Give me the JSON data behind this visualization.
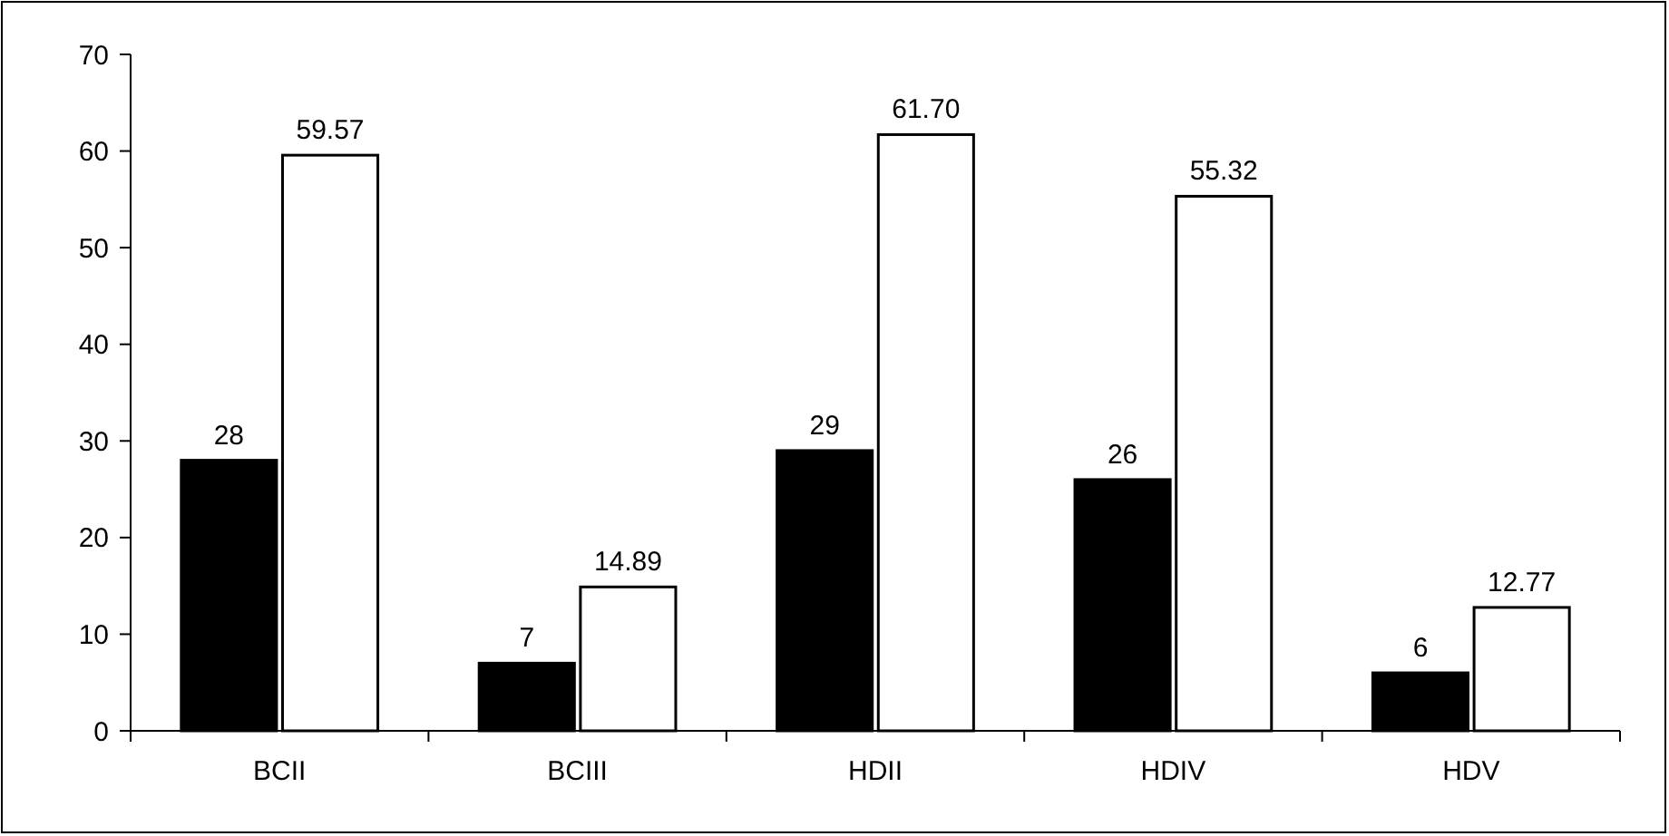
{
  "chart_data": {
    "type": "bar",
    "categories": [
      "BCII",
      "BCIII",
      "HDII",
      "HDIV",
      "HDV"
    ],
    "series": [
      {
        "color": "#000000",
        "values": [
          28,
          7,
          29,
          26,
          6
        ],
        "value_labels": [
          "28",
          "7",
          "29",
          "26",
          "6"
        ]
      },
      {
        "color": "#ffffff",
        "values": [
          59.57,
          14.89,
          61.7,
          55.32,
          12.77
        ],
        "value_labels": [
          "59.57",
          "14.89",
          "61.70",
          "55.32",
          "12.77"
        ]
      }
    ],
    "ylim": [
      0,
      70
    ],
    "yticks": [
      0,
      10,
      20,
      30,
      40,
      50,
      60,
      70
    ],
    "grid": false
  }
}
